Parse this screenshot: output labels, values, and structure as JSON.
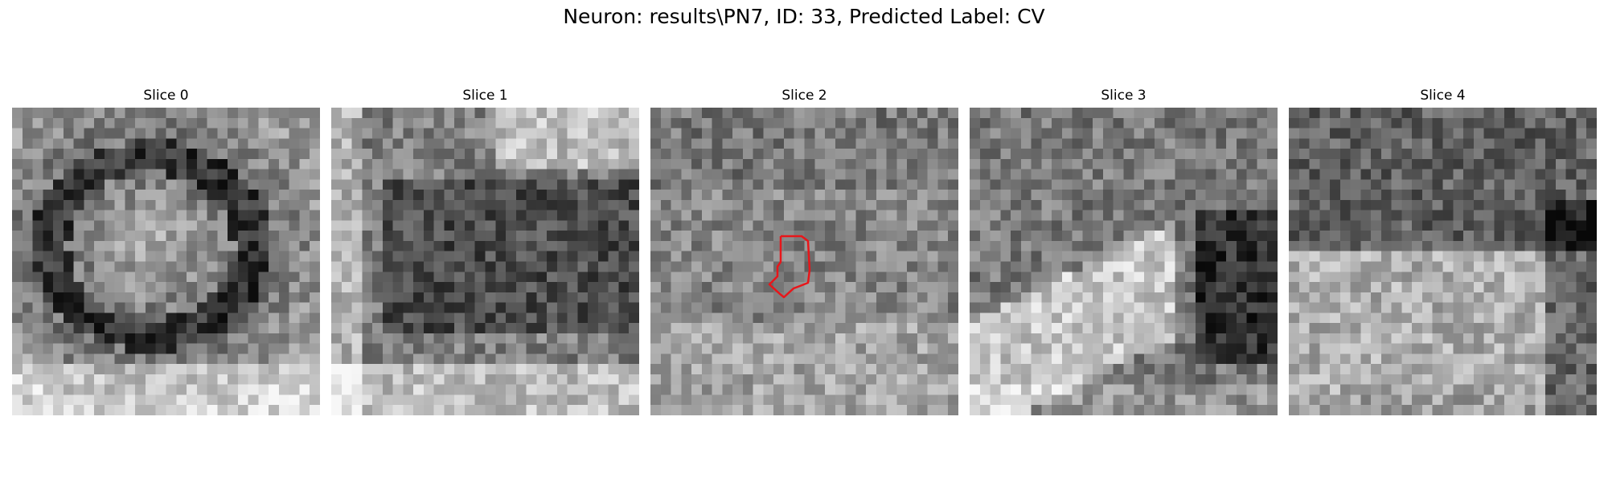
{
  "figure": {
    "title": "Neuron: results\\PN7, ID: 33, Predicted Label: CV"
  },
  "panels": [
    {
      "title": "Slice 0"
    },
    {
      "title": "Slice 1"
    },
    {
      "title": "Slice 2"
    },
    {
      "title": "Slice 3"
    },
    {
      "title": "Slice 4"
    }
  ],
  "colors": {
    "contour": "#e8161a",
    "background": "#ffffff"
  }
}
